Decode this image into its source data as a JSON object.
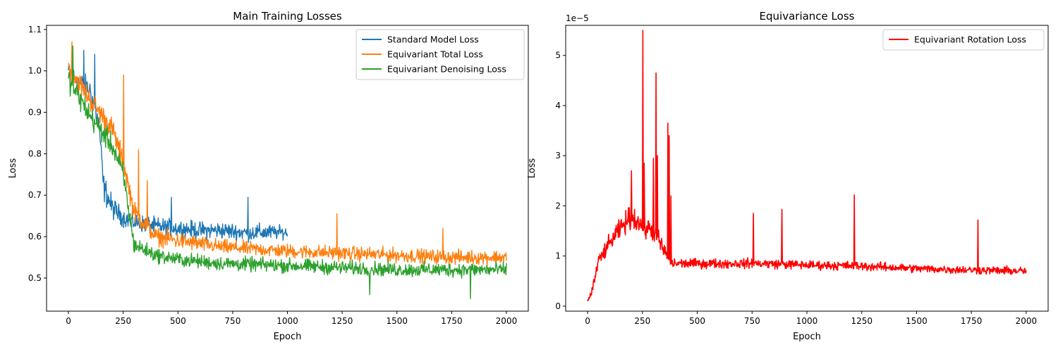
{
  "chart_data": [
    {
      "type": "line",
      "title": "Main Training Losses",
      "xlabel": "Epoch",
      "ylabel": "Loss",
      "xlim": [
        -100,
        2100
      ],
      "ylim": [
        0.42,
        1.11
      ],
      "xticks": [
        0,
        250,
        500,
        750,
        1000,
        1250,
        1500,
        1750,
        2000
      ],
      "yticks": [
        0.5,
        0.6,
        0.7,
        0.8,
        0.9,
        1.0,
        1.1
      ],
      "ytick_labels": [
        "0.5",
        "0.6",
        "0.7",
        "0.8",
        "0.9",
        "1.0",
        "1.1"
      ],
      "grid": false,
      "legend_position": "top-right",
      "series": [
        {
          "name": "Standard Model Loss",
          "color": "#1f77b4",
          "x_end": 1000,
          "x": [
            0,
            50,
            100,
            140,
            160,
            200,
            250,
            300,
            400,
            500,
            600,
            700,
            800,
            900,
            1000
          ],
          "mean": [
            1.0,
            0.97,
            0.95,
            0.87,
            0.72,
            0.67,
            0.645,
            0.635,
            0.625,
            0.62,
            0.615,
            0.615,
            0.61,
            0.61,
            0.61
          ],
          "spread": [
            0.03,
            0.04,
            0.05,
            0.04,
            0.05,
            0.04,
            0.03,
            0.03,
            0.03,
            0.03,
            0.03,
            0.03,
            0.03,
            0.03,
            0.02
          ],
          "spikes": [
            [
              70,
              1.05
            ],
            [
              120,
              1.04
            ],
            [
              820,
              0.695
            ],
            [
              470,
              0.695
            ]
          ]
        },
        {
          "name": "Equivariant Total Loss",
          "color": "#ff7f0e",
          "x_end": 2000,
          "x": [
            0,
            100,
            200,
            250,
            300,
            400,
            500,
            700,
            1000,
            1250,
            1500,
            1750,
            2000
          ],
          "mean": [
            1.01,
            0.93,
            0.86,
            0.78,
            0.66,
            0.6,
            0.59,
            0.575,
            0.565,
            0.56,
            0.555,
            0.55,
            0.55
          ],
          "spread": [
            0.04,
            0.04,
            0.04,
            0.04,
            0.035,
            0.03,
            0.03,
            0.025,
            0.025,
            0.025,
            0.025,
            0.025,
            0.025
          ],
          "spikes": [
            [
              15,
              1.07
            ],
            [
              252,
              0.99
            ],
            [
              320,
              0.81
            ],
            [
              360,
              0.735
            ],
            [
              1225,
              0.655
            ],
            [
              1710,
              0.62
            ]
          ]
        },
        {
          "name": "Equivariant Denoising Loss",
          "color": "#2ca02c",
          "x_end": 2000,
          "x": [
            0,
            100,
            200,
            250,
            300,
            400,
            500,
            700,
            1000,
            1250,
            1500,
            1750,
            2000
          ],
          "mean": [
            0.98,
            0.89,
            0.82,
            0.75,
            0.58,
            0.555,
            0.545,
            0.535,
            0.53,
            0.525,
            0.52,
            0.52,
            0.52
          ],
          "spread": [
            0.04,
            0.04,
            0.04,
            0.04,
            0.03,
            0.025,
            0.025,
            0.025,
            0.025,
            0.025,
            0.025,
            0.025,
            0.025
          ],
          "spikes": [
            [
              20,
              1.06
            ],
            [
              1375,
              0.46
            ],
            [
              1835,
              0.45
            ]
          ]
        }
      ]
    },
    {
      "type": "line",
      "title": "Equivariance Loss",
      "xlabel": "Epoch",
      "ylabel": "Loss",
      "offset_text": "1e−5",
      "xlim": [
        -100,
        2100
      ],
      "ylim": [
        -0.1,
        5.6
      ],
      "xticks": [
        0,
        250,
        500,
        750,
        1000,
        1250,
        1500,
        1750,
        2000
      ],
      "yticks": [
        0,
        1,
        2,
        3,
        4,
        5
      ],
      "ytick_labels": [
        "0",
        "1",
        "2",
        "3",
        "4",
        "5"
      ],
      "grid": false,
      "legend_position": "top-right",
      "series": [
        {
          "name": "Equivariant Rotation Loss",
          "color": "#ff0000",
          "x_end": 2000,
          "x": [
            0,
            20,
            50,
            100,
            150,
            200,
            250,
            300,
            350,
            380,
            450,
            600,
            800,
            1000,
            1250,
            1500,
            1750,
            2000
          ],
          "mean": [
            0.1,
            0.3,
            0.9,
            1.25,
            1.55,
            1.8,
            1.6,
            1.5,
            1.1,
            0.85,
            0.85,
            0.85,
            0.85,
            0.82,
            0.8,
            0.75,
            0.72,
            0.7
          ],
          "spread": [
            0.05,
            0.15,
            0.2,
            0.25,
            0.3,
            0.35,
            0.35,
            0.3,
            0.25,
            0.15,
            0.14,
            0.14,
            0.14,
            0.13,
            0.13,
            0.12,
            0.12,
            0.12
          ],
          "spikes": [
            [
              200,
              2.7
            ],
            [
              252,
              5.5
            ],
            [
              258,
              2.85
            ],
            [
              300,
              2.95
            ],
            [
              312,
              4.65
            ],
            [
              318,
              3.0
            ],
            [
              365,
              3.65
            ],
            [
              372,
              3.4
            ],
            [
              380,
              2.2
            ],
            [
              755,
              1.85
            ],
            [
              885,
              1.93
            ],
            [
              1215,
              2.22
            ],
            [
              1780,
              1.72
            ]
          ]
        }
      ]
    }
  ]
}
